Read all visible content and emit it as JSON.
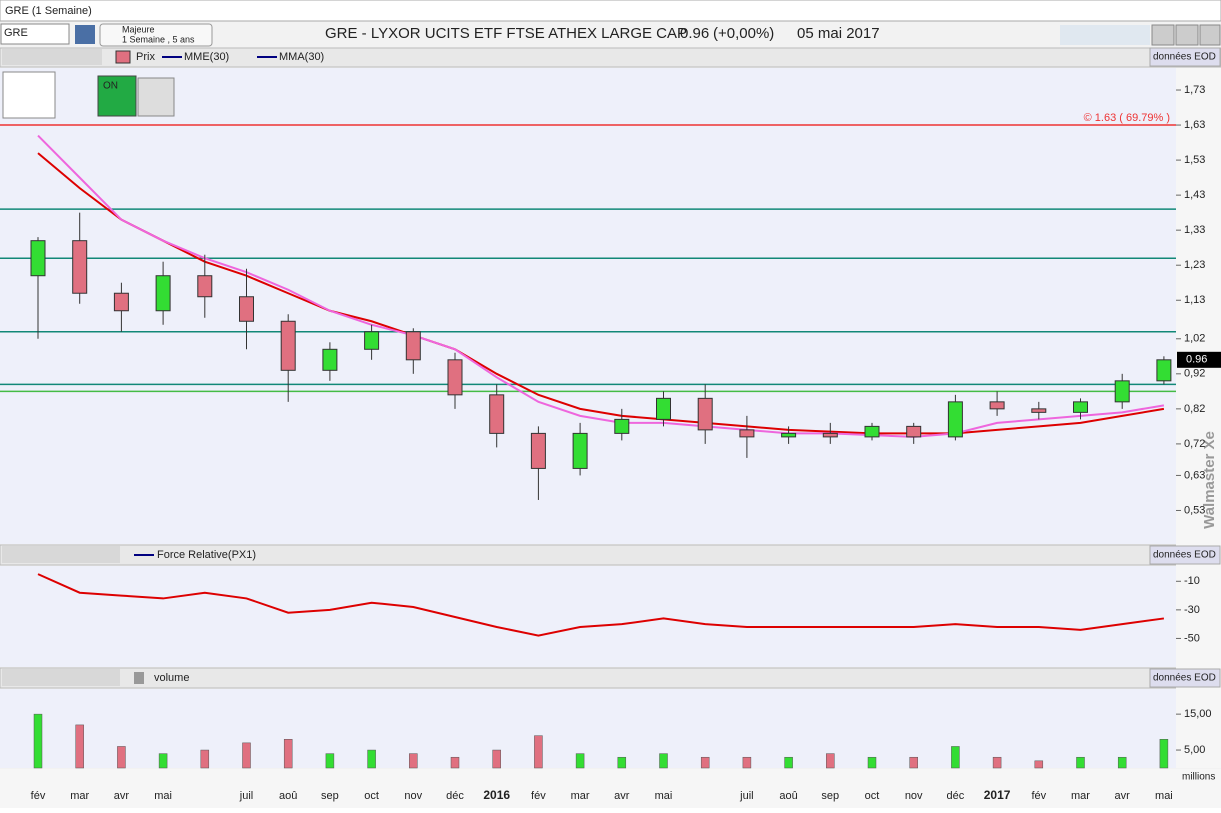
{
  "window_title": "GRE (1 Semaine)",
  "toolbar": {
    "symbol": "GRE",
    "period_title": "Majeure",
    "period": "1 Semaine , 5 ans",
    "instrument": "GRE - LYXOR UCITS ETF FTSE ATHEX LARGE CAP",
    "last": "0.96",
    "change": "(+0,00%)",
    "date": "05 mai 2017"
  },
  "watermark": "Walmaster Xe",
  "toggle": "ON",
  "chart_data": [
    {
      "type": "candlestick",
      "source": "données EOD",
      "name": "Prix",
      "categories": [
        "fév",
        "mar",
        "avr",
        "mai",
        null,
        "juil",
        "aoû",
        "sep",
        "oct",
        "nov",
        "déc",
        "2016",
        "fév",
        "mar",
        "avr",
        "mai",
        null,
        "juil",
        "aoû",
        "sep",
        "oct",
        "nov",
        "déc",
        "2017",
        "fév",
        "mar",
        "avr",
        "mai"
      ],
      "open": [
        1.2,
        1.3,
        1.15,
        1.1,
        1.2,
        1.14,
        1.07,
        0.93,
        0.99,
        1.04,
        0.96,
        0.86,
        0.75,
        0.65,
        0.75,
        0.79,
        0.85,
        0.76,
        0.74,
        0.75,
        0.74,
        0.77,
        0.74,
        0.84,
        0.82,
        0.81,
        0.84,
        0.9
      ],
      "high": [
        1.31,
        1.38,
        1.18,
        1.24,
        1.26,
        1.22,
        1.09,
        1.01,
        1.06,
        1.05,
        0.98,
        0.89,
        0.77,
        0.78,
        0.82,
        0.87,
        0.89,
        0.8,
        0.77,
        0.78,
        0.78,
        0.78,
        0.86,
        0.87,
        0.84,
        0.85,
        0.92,
        0.97
      ],
      "low": [
        1.02,
        1.12,
        1.04,
        1.06,
        1.08,
        0.99,
        0.84,
        0.9,
        0.96,
        0.92,
        0.82,
        0.71,
        0.56,
        0.63,
        0.73,
        0.77,
        0.72,
        0.68,
        0.72,
        0.72,
        0.73,
        0.72,
        0.73,
        0.8,
        0.79,
        0.79,
        0.82,
        0.89
      ],
      "close": [
        1.3,
        1.15,
        1.1,
        1.2,
        1.14,
        1.07,
        0.93,
        0.99,
        1.04,
        0.96,
        0.86,
        0.75,
        0.65,
        0.75,
        0.79,
        0.85,
        0.76,
        0.74,
        0.75,
        0.74,
        0.77,
        0.74,
        0.84,
        0.82,
        0.81,
        0.84,
        0.9,
        0.96
      ],
      "up_color": "#33dd33",
      "down_color": "#e07080",
      "series": [
        {
          "name": "MME(30)",
          "color": "#dd0000",
          "values": [
            1.55,
            1.45,
            1.36,
            1.3,
            1.24,
            1.2,
            1.15,
            1.1,
            1.07,
            1.03,
            0.99,
            0.92,
            0.86,
            0.82,
            0.8,
            0.79,
            0.78,
            0.77,
            0.76,
            0.755,
            0.75,
            0.75,
            0.75,
            0.76,
            0.77,
            0.78,
            0.8,
            0.82
          ]
        },
        {
          "name": "MMA(30)",
          "color": "#ee66dd",
          "values": [
            1.6,
            1.48,
            1.36,
            1.3,
            1.25,
            1.21,
            1.16,
            1.1,
            1.06,
            1.03,
            0.99,
            0.91,
            0.84,
            0.8,
            0.78,
            0.78,
            0.77,
            0.76,
            0.75,
            0.75,
            0.745,
            0.74,
            0.75,
            0.78,
            0.79,
            0.8,
            0.81,
            0.83
          ]
        }
      ],
      "hlines": [
        {
          "value": 1.63,
          "color": "#ee3333",
          "label": "© 1.63 ( 69.79% )"
        },
        {
          "value": 1.39,
          "color": "#118877"
        },
        {
          "value": 1.25,
          "color": "#118877"
        },
        {
          "value": 1.04,
          "color": "#118877"
        },
        {
          "value": 0.89,
          "color": "#118877"
        },
        {
          "value": 0.87,
          "color": "#44bb44"
        }
      ],
      "last_price": 0.96,
      "ylim": [
        0.44,
        1.79
      ],
      "yticks": [
        {
          "value": 1.73,
          "label": "1,73"
        },
        {
          "value": 1.63,
          "label": "1,63"
        },
        {
          "value": 1.53,
          "label": "1,53"
        },
        {
          "value": 1.43,
          "label": "1,43"
        },
        {
          "value": 1.33,
          "label": "1,33"
        },
        {
          "value": 1.23,
          "label": "1,23"
        },
        {
          "value": 1.13,
          "label": "1,13"
        },
        {
          "value": 1.02,
          "label": "1,02"
        },
        {
          "value": 0.92,
          "label": "0,92"
        },
        {
          "value": 0.82,
          "label": "0,82"
        },
        {
          "value": 0.72,
          "label": "0,72"
        },
        {
          "value": 0.63,
          "label": "0,63"
        },
        {
          "value": 0.53,
          "label": "0,53"
        }
      ]
    },
    {
      "type": "line",
      "source": "données EOD",
      "series": [
        {
          "name": "Force Relative(PX1)",
          "color": "#dd0000",
          "values": [
            -5,
            -18,
            -20,
            -22,
            -18,
            -22,
            -32,
            -30,
            -25,
            -28,
            -35,
            -42,
            -48,
            -42,
            -40,
            -36,
            -40,
            -42,
            -42,
            -42,
            -42,
            -42,
            -40,
            -42,
            -42,
            -44,
            -40,
            -36
          ]
        }
      ],
      "ylim": [
        -70,
        0
      ],
      "yticks": [
        -10,
        -30,
        -50
      ]
    },
    {
      "type": "bar",
      "source": "données EOD",
      "name": "volume",
      "unit_label": "millions",
      "values": [
        15,
        12,
        6,
        4,
        5,
        7,
        8,
        4,
        5,
        4,
        3,
        5,
        9,
        4,
        3,
        4,
        3,
        3,
        3,
        4,
        3,
        3,
        6,
        3,
        2,
        3,
        3,
        8
      ],
      "ylim": [
        0,
        22
      ],
      "yticks": [
        {
          "value": 15,
          "label": "15,00"
        },
        {
          "value": 5,
          "label": "5,00"
        }
      ]
    }
  ]
}
